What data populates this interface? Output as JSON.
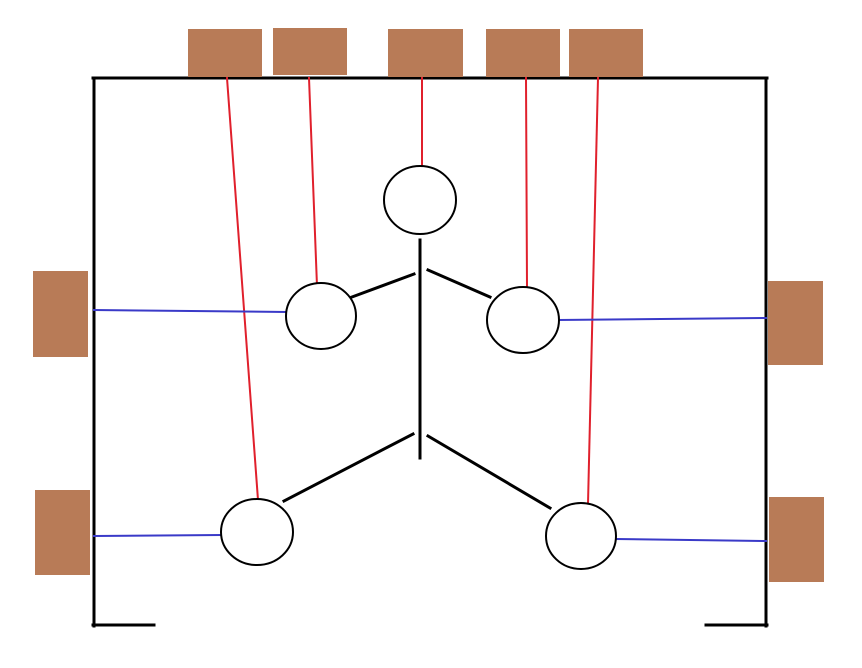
{
  "colors": {
    "background": "#ffffff",
    "frame": "#000000",
    "pad_fill": "#b87b57",
    "vertical_wire": "#e0202c",
    "horizontal_wire": "#3a3ac8",
    "node_stroke": "#000000",
    "node_fill": "#ffffff",
    "body_line": "#000000"
  },
  "counts": {
    "top_pads": 5,
    "side_pads": 4,
    "nodes": 5
  }
}
